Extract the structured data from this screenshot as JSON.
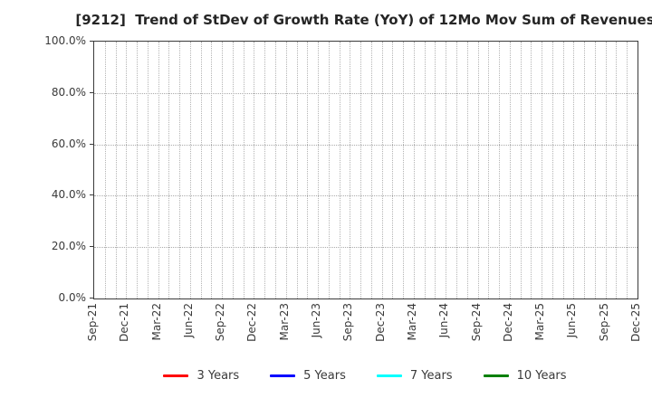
{
  "figure": {
    "background": "#ffffff",
    "text_color": "#3a3a3a",
    "axis_color": "#3a3a3a",
    "grid_color": "#b4b4b4"
  },
  "chart_data": {
    "type": "line",
    "title": "[9212]  Trend of StDev of Growth Rate (YoY) of 12Mo Mov Sum of Revenues",
    "xlabel": "",
    "ylabel": "",
    "ylim": [
      0,
      100
    ],
    "y_tick_labels": [
      "100.0%",
      "80.0%",
      "60.0%",
      "40.0%",
      "20.0%",
      "0.0%"
    ],
    "y_tick_values": [
      100,
      80,
      60,
      40,
      20,
      0
    ],
    "x_tick_labels": [
      "Sep-21",
      "Dec-21",
      "Mar-22",
      "Jun-22",
      "Sep-22",
      "Dec-22",
      "Mar-23",
      "Jun-23",
      "Sep-23",
      "Dec-23",
      "Mar-24",
      "Jun-24",
      "Sep-24",
      "Dec-24",
      "Mar-25",
      "Jun-25",
      "Sep-25",
      "Dec-25"
    ],
    "x_months_between_labels": 3,
    "x_total_month_intervals": 51,
    "grid": "dotted, monthly vertical and 20% horizontal",
    "legend_position": "bottom-center",
    "legend_frame": false,
    "series": [
      {
        "name": "3 Years",
        "color": "#ff0000",
        "values": []
      },
      {
        "name": "5 Years",
        "color": "#0000ff",
        "values": []
      },
      {
        "name": "7 Years",
        "color": "#00ffff",
        "values": []
      },
      {
        "name": "10 Years",
        "color": "#008000",
        "values": []
      }
    ],
    "plotted_data_visible": false
  }
}
